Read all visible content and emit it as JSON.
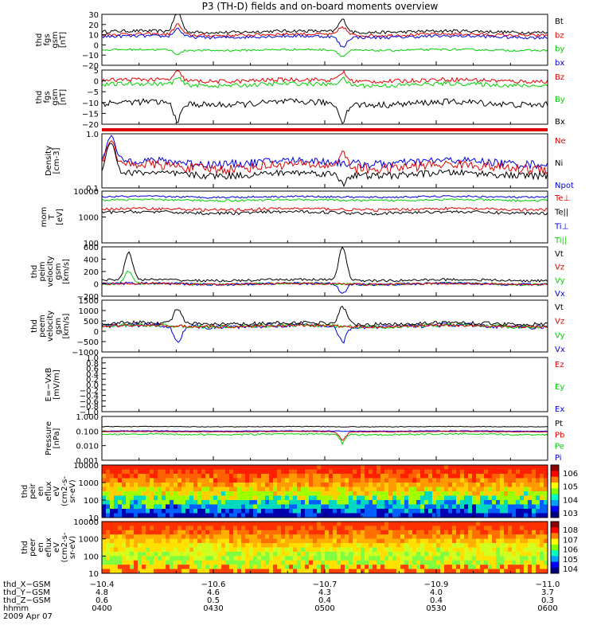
{
  "title": "P3 (TH-D) fields and on-board moments overview",
  "colors": {
    "black": "#000000",
    "red": "#e00000",
    "green": "#00d000",
    "blue": "#0000e0"
  },
  "chart_data": [
    {
      "type": "line",
      "ylabel": [
        "thd",
        "fgs",
        "gsm",
        "[nT]"
      ],
      "yticks": [
        "30",
        "20",
        "10",
        "0",
        "−10",
        "−20"
      ],
      "ylim": [
        -20,
        30
      ],
      "legend": [
        {
          "label": "Bt",
          "color": "black"
        },
        {
          "label": "bz",
          "color": "red"
        },
        {
          "label": "by",
          "color": "green"
        },
        {
          "label": "bx",
          "color": "blue"
        }
      ],
      "series": [
        {
          "color": "black",
          "base": 13,
          "amp": 3,
          "spikes": [
            [
              0.17,
              20
            ],
            [
              0.54,
              12
            ]
          ]
        },
        {
          "color": "red",
          "base": 10,
          "amp": 3,
          "spikes": [
            [
              0.17,
              10
            ],
            [
              0.54,
              8
            ]
          ]
        },
        {
          "color": "blue",
          "base": 8,
          "amp": 3,
          "spikes": [
            [
              0.17,
              8
            ],
            [
              0.54,
              -10
            ]
          ]
        },
        {
          "color": "green",
          "base": -5,
          "amp": 2,
          "spikes": [
            [
              0.17,
              -4
            ],
            [
              0.54,
              -6
            ]
          ]
        }
      ]
    },
    {
      "type": "line",
      "ylabel": [
        "thd",
        "fgs",
        "gsm",
        "[nT]"
      ],
      "yticks": [
        "5",
        "0",
        "−5",
        "−10",
        "−15",
        "−20"
      ],
      "ylim": [
        -20,
        6
      ],
      "legend": [
        {
          "label": "Bz",
          "color": "red"
        },
        {
          "label": "By",
          "color": "green"
        },
        {
          "label": "Bx",
          "color": "black"
        }
      ],
      "series": [
        {
          "color": "red",
          "base": 1,
          "amp": 2,
          "spikes": [
            [
              0.17,
              4
            ],
            [
              0.54,
              4
            ]
          ]
        },
        {
          "color": "green",
          "base": -1,
          "amp": 2,
          "spikes": [
            [
              0.17,
              3
            ],
            [
              0.54,
              3
            ]
          ]
        },
        {
          "color": "black",
          "base": -10,
          "amp": 3,
          "spikes": [
            [
              0.17,
              -8
            ],
            [
              0.54,
              -8
            ]
          ]
        }
      ]
    },
    {
      "type": "line",
      "ylabel": [
        "Density",
        "[cm-3]"
      ],
      "yticks": [
        "1.0",
        "0.1"
      ],
      "ylim": [
        0.1,
        1.0
      ],
      "log": true,
      "legend": [
        {
          "label": "Ne",
          "color": "red"
        },
        {
          "label": "Ni",
          "color": "black"
        },
        {
          "label": "Npot",
          "color": "blue"
        }
      ],
      "series": [
        {
          "color": "blue",
          "base": 0.3,
          "amp": 0.1,
          "spikes": [
            [
              0.02,
              0.6
            ]
          ]
        },
        {
          "color": "red",
          "base": 0.25,
          "amp": 0.1,
          "spikes": [
            [
              0.02,
              0.5
            ],
            [
              0.54,
              0.2
            ]
          ]
        },
        {
          "color": "black",
          "base": 0.18,
          "amp": 0.05,
          "spikes": [
            [
              0.02,
              0.5
            ],
            [
              0.54,
              -0.05
            ]
          ]
        }
      ]
    },
    {
      "type": "line",
      "ylabel": [
        "mom",
        "T",
        "[eV]"
      ],
      "yticks": [
        "10000",
        "1000",
        "100"
      ],
      "ylim": [
        100,
        10000
      ],
      "log": true,
      "legend": [
        {
          "label": "Te⊥",
          "color": "red"
        },
        {
          "label": "Te||",
          "color": "black"
        },
        {
          "label": "Ti⊥",
          "color": "blue"
        },
        {
          "label": "Ti||",
          "color": "green"
        }
      ],
      "series": [
        {
          "color": "blue",
          "base": 6000,
          "amp": 1000,
          "spikes": []
        },
        {
          "color": "green",
          "base": 4500,
          "amp": 800,
          "spikes": []
        },
        {
          "color": "red",
          "base": 2000,
          "amp": 500,
          "spikes": []
        },
        {
          "color": "black",
          "base": 1500,
          "amp": 400,
          "spikes": []
        }
      ]
    },
    {
      "type": "line",
      "ylabel": [
        "thd",
        "peim",
        "velocity",
        "gsm",
        "[km/s]"
      ],
      "yticks": [
        "600",
        "400",
        "200",
        "0",
        "−200"
      ],
      "ylim": [
        -200,
        600
      ],
      "legend": [
        {
          "label": "Vt",
          "color": "black"
        },
        {
          "label": "Vz",
          "color": "red"
        },
        {
          "label": "Vy",
          "color": "green"
        },
        {
          "label": "Vx",
          "color": "blue"
        }
      ],
      "series": [
        {
          "color": "green",
          "base": 0,
          "amp": 40,
          "spikes": [
            [
              0.06,
              200
            ]
          ]
        },
        {
          "color": "blue",
          "base": 0,
          "amp": 40,
          "spikes": [
            [
              0.54,
              -150
            ]
          ]
        },
        {
          "color": "red",
          "base": 0,
          "amp": 30,
          "spikes": []
        },
        {
          "color": "black",
          "base": 60,
          "amp": 40,
          "spikes": [
            [
              0.06,
              450
            ],
            [
              0.54,
              550
            ]
          ]
        }
      ]
    },
    {
      "type": "line",
      "ylabel": [
        "thd",
        "peem",
        "velocity",
        "gsm",
        "[km/s]"
      ],
      "yticks": [
        "1500",
        "1000",
        "500",
        "0",
        "−500",
        "−1000"
      ],
      "ylim": [
        -1500,
        1500
      ],
      "legend": [
        {
          "label": "Vt",
          "color": "black"
        },
        {
          "label": "Vz",
          "color": "red"
        },
        {
          "label": "Vy",
          "color": "green"
        },
        {
          "label": "Vx",
          "color": "blue"
        }
      ],
      "series": [
        {
          "color": "blue",
          "base": 0,
          "amp": 250,
          "spikes": [
            [
              0.17,
              -900
            ],
            [
              0.54,
              -900
            ]
          ]
        },
        {
          "color": "green",
          "base": 0,
          "amp": 200,
          "spikes": []
        },
        {
          "color": "red",
          "base": 0,
          "amp": 150,
          "spikes": []
        },
        {
          "color": "black",
          "base": 150,
          "amp": 200,
          "spikes": [
            [
              0.17,
              900
            ],
            [
              0.54,
              1000
            ]
          ]
        }
      ]
    },
    {
      "type": "line",
      "ylabel": [
        "E=−VxB",
        "[mV/m]"
      ],
      "yticks": [
        "1.0",
        "0.8",
        "0.6",
        "0.4",
        "0.2",
        "0.0",
        "−0.2",
        "−0.4",
        "−0.6",
        "−0.8",
        "−1.0"
      ],
      "ylim": [
        -1,
        1
      ],
      "legend": [
        {
          "label": "Ez",
          "color": "red"
        },
        {
          "label": "Ey",
          "color": "green"
        },
        {
          "label": "Ex",
          "color": "blue"
        }
      ],
      "series": []
    },
    {
      "type": "line",
      "ylabel": [
        "Pressure",
        "[nPa]"
      ],
      "yticks": [
        "1.000",
        "0.100",
        "0.010",
        "0.001"
      ],
      "ylim": [
        0.001,
        1
      ],
      "log": true,
      "legend": [
        {
          "label": "Pt",
          "color": "black"
        },
        {
          "label": "Pb",
          "color": "red"
        },
        {
          "label": "Pe",
          "color": "green"
        },
        {
          "label": "Pi",
          "color": "blue"
        }
      ],
      "series": [
        {
          "color": "black",
          "base": 0.2,
          "amp": 0.02,
          "spikes": []
        },
        {
          "color": "blue",
          "base": 0.1,
          "amp": 0.01,
          "spikes": []
        },
        {
          "color": "red",
          "base": 0.09,
          "amp": 0.01,
          "spikes": [
            [
              0.54,
              -0.07
            ]
          ]
        },
        {
          "color": "green",
          "base": 0.06,
          "amp": 0.015,
          "spikes": [
            [
              0.54,
              -0.04
            ]
          ]
        }
      ]
    },
    {
      "type": "heatmap",
      "ylabel": [
        "thd",
        "peir",
        "en",
        "eflux",
        "eV",
        "(cm^2-s-",
        "sr-eV)"
      ],
      "yticks": [
        "10000",
        "1000",
        "100",
        "10"
      ],
      "ylim": [
        10,
        10000
      ],
      "log": true,
      "cbar_ticks": [
        "10^6",
        "10^5",
        "10^4",
        "10^3"
      ]
    },
    {
      "type": "heatmap",
      "ylabel": [
        "thd",
        "peer",
        "en",
        "eflux",
        "eV",
        "(cm^2-s-",
        "sr-eV)"
      ],
      "yticks": [
        "10000",
        "1000",
        "100",
        "10"
      ],
      "ylim": [
        10,
        10000
      ],
      "log": true,
      "cbar_ticks": [
        "10^8",
        "10^7",
        "10^6",
        "10^5",
        "10^4"
      ]
    }
  ],
  "x_axis": {
    "rows": [
      {
        "label": "thd_X−GSM",
        "values": [
          "−10.4",
          "−10.6",
          "−10.7",
          "−10.9",
          "−11.0"
        ]
      },
      {
        "label": "thd_Y−GSM",
        "values": [
          "4.8",
          "4.6",
          "4.3",
          "4.0",
          "3.7"
        ]
      },
      {
        "label": "thd_Z−GSM",
        "values": [
          "0.6",
          "0.5",
          "0.4",
          "0.4",
          "0.3"
        ]
      },
      {
        "label": "hhmm",
        "values": [
          "0400",
          "0430",
          "0500",
          "0530",
          "0600"
        ]
      }
    ],
    "date": "2009 Apr 07"
  }
}
